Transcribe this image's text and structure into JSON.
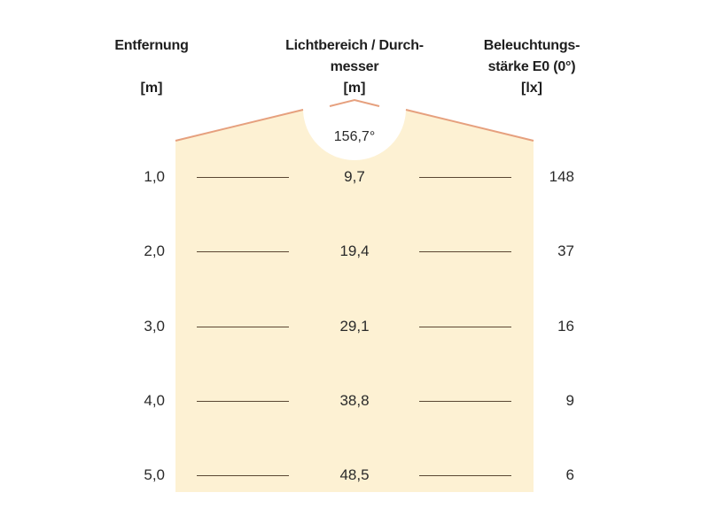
{
  "headers": {
    "distance": {
      "title": "Entfernung",
      "unit": "[m]"
    },
    "diameter": {
      "title_line1": "Lichtbereich / Durch-",
      "title_line2": "messer",
      "unit": "[m]"
    },
    "illuminance": {
      "title_line1": "Beleuchtungs-",
      "title_line2": "stärke E0 (0°)",
      "unit": "[lx]"
    }
  },
  "beam_angle": "156,7°",
  "colors": {
    "light_area": "#fdf1d3",
    "outline": "#e6a07e",
    "rule": "#5a4632"
  },
  "rows": [
    {
      "distance": "1,0",
      "diameter": "9,7",
      "illuminance": "148"
    },
    {
      "distance": "2,0",
      "diameter": "19,4",
      "illuminance": "37"
    },
    {
      "distance": "3,0",
      "diameter": "29,1",
      "illuminance": "16"
    },
    {
      "distance": "4,0",
      "diameter": "38,8",
      "illuminance": "9"
    },
    {
      "distance": "5,0",
      "diameter": "48,5",
      "illuminance": "6"
    }
  ]
}
